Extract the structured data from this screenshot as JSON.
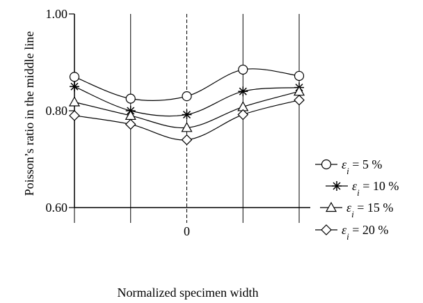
{
  "chart_data": {
    "type": "line",
    "title": "",
    "xlabel": "Normalized specimen width",
    "ylabel": "Poisson’s ratio in the middle line",
    "x": [
      -2,
      -1,
      0,
      1,
      2
    ],
    "x_tick_labels": [
      {
        "x": 0,
        "label": "0"
      }
    ],
    "ylim": [
      0.6,
      1.0
    ],
    "y_ticks": [
      {
        "value": 0.6,
        "label": "0.60"
      },
      {
        "value": 0.8,
        "label": "0.80"
      },
      {
        "value": 1.0,
        "label": "1.00"
      }
    ],
    "grid": "vertical lines at each x, dashed at center",
    "legend_position": "right",
    "series": [
      {
        "name_prefix": "ε",
        "name_sub": "i",
        "name_suffix": " = 5 %",
        "marker": "circle",
        "values": [
          0.87,
          0.825,
          0.83,
          0.885,
          0.872
        ]
      },
      {
        "name_prefix": "ε",
        "name_sub": "i",
        "name_suffix": " = 10 %",
        "marker": "asterisk",
        "values": [
          0.85,
          0.8,
          0.792,
          0.84,
          0.848
        ]
      },
      {
        "name_prefix": "ε",
        "name_sub": "i",
        "name_suffix": " = 15 %",
        "marker": "triangle",
        "values": [
          0.818,
          0.79,
          0.765,
          0.808,
          0.84
        ]
      },
      {
        "name_prefix": "ε",
        "name_sub": "i",
        "name_suffix": " = 20 %",
        "marker": "diamond",
        "values": [
          0.79,
          0.772,
          0.74,
          0.792,
          0.822
        ]
      }
    ]
  }
}
